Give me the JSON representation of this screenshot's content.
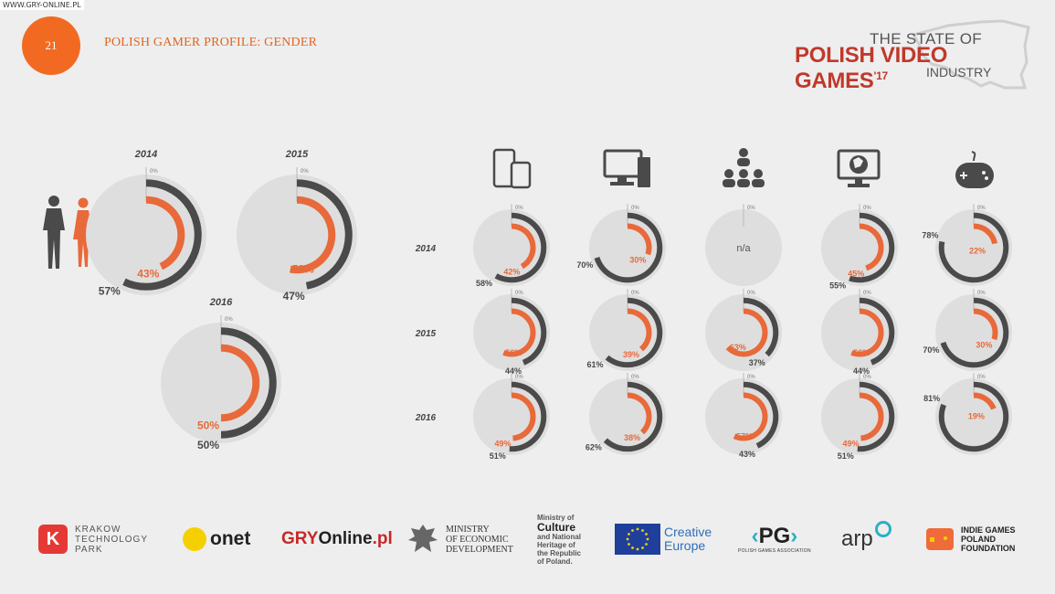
{
  "watermark": "WWW.GRY-ONLINE.PL",
  "header": {
    "page_number": "21",
    "title": "POLISH GAMER PROFILE: GENDER"
  },
  "brand": {
    "line1": "THE STATE OF",
    "line2": "POLISH VIDEO GAMES",
    "year": "'17",
    "line3": "INDUSTRY"
  },
  "colors": {
    "female": "#e8693a",
    "male": "#4a4a4a",
    "track": "#dedede",
    "accent": "#f26a21"
  },
  "chart_data": [
    {
      "type": "donut",
      "group": "overall",
      "zero_label": "0%",
      "series_colors": {
        "female": "#e8693a",
        "male": "#4a4a4a"
      },
      "years": [
        {
          "year": "2014",
          "female": 43,
          "male": 57,
          "female_label": "43%",
          "male_label": "57%"
        },
        {
          "year": "2015",
          "female": 53,
          "male": 47,
          "female_label": "53%",
          "male_label": "47%"
        },
        {
          "year": "2016",
          "female": 50,
          "male": 50,
          "female_label": "50%",
          "male_label": "50%"
        }
      ]
    },
    {
      "type": "donut",
      "group": "by-platform",
      "zero_label": "0%",
      "platforms": [
        "mobile",
        "computer",
        "social",
        "internet",
        "console"
      ],
      "icons": [
        "mobile-devices-icon",
        "desktop-computer-icon",
        "social-network-icon",
        "globe-monitor-icon",
        "gamepad-icon"
      ],
      "rows": [
        {
          "year": "2014",
          "cells": [
            {
              "female": 42,
              "male": 58,
              "female_label": "42%",
              "male_label": "58%"
            },
            {
              "female": 30,
              "male": 70,
              "female_label": "30%",
              "male_label": "70%"
            },
            {
              "na": "n/a"
            },
            {
              "female": 45,
              "male": 55,
              "female_label": "45%",
              "male_label": "55%"
            },
            {
              "female": 22,
              "male": 78,
              "female_label": "22%",
              "male_label": "78%"
            }
          ]
        },
        {
          "year": "2015",
          "cells": [
            {
              "female": 56,
              "male": 44,
              "female_label": "56%",
              "male_label": "44%"
            },
            {
              "female": 39,
              "male": 61,
              "female_label": "39%",
              "male_label": "61%"
            },
            {
              "female": 63,
              "male": 37,
              "female_label": "63%",
              "male_label": "37%"
            },
            {
              "female": 56,
              "male": 44,
              "female_label": "56%",
              "male_label": "44%"
            },
            {
              "female": 30,
              "male": 70,
              "female_label": "30%",
              "male_label": "70%"
            }
          ]
        },
        {
          "year": "2016",
          "cells": [
            {
              "female": 49,
              "male": 51,
              "female_label": "49%",
              "male_label": "51%"
            },
            {
              "female": 38,
              "male": 62,
              "female_label": "38%",
              "male_label": "62%"
            },
            {
              "female": 57,
              "male": 43,
              "female_label": "57%",
              "male_label": "43%"
            },
            {
              "female": 49,
              "male": 51,
              "female_label": "49%",
              "male_label": "51%"
            },
            {
              "female": 19,
              "male": 81,
              "female_label": "19%",
              "male_label": "81%"
            }
          ]
        }
      ]
    }
  ],
  "partners": {
    "krakow": [
      "KRAKOW",
      "TECHNOLOGY",
      "PARK"
    ],
    "onet": "onet",
    "gry_a": "GRY",
    "gry_b": "Online",
    "gry_c": ".pl",
    "ministry_econ": [
      "MINISTRY",
      "OF ECONOMIC",
      "DEVELOPMENT"
    ],
    "ministry_culture": [
      "Ministry of",
      "Culture",
      "and National",
      "Heritage of",
      "the Republic",
      "of Poland."
    ],
    "creative": [
      "Creative",
      "Europe"
    ],
    "pg": "PG",
    "pg_sub": "POLISH GAMES ASSOCIATION",
    "arp": "arp",
    "indie": [
      "INDIE GAMES",
      "POLAND",
      "FOUNDATION"
    ]
  }
}
